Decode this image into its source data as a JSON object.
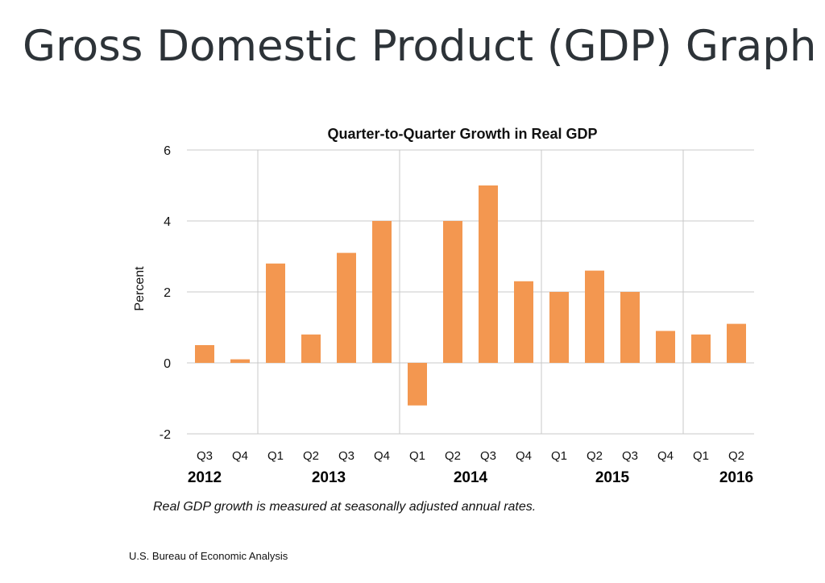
{
  "slide": {
    "title": "Gross Domestic Product (GDP) Graph",
    "source": "U.S. Bureau of Economic Analysis"
  },
  "chart_data": {
    "type": "bar",
    "title": "Quarter-to-Quarter Growth in Real GDP",
    "ylabel": "Percent",
    "xlabel": "",
    "ylim": [
      -2,
      6
    ],
    "yticks": [
      -2,
      0,
      2,
      4,
      6
    ],
    "grid": true,
    "categories": [
      "Q3",
      "Q4",
      "Q1",
      "Q2",
      "Q3",
      "Q4",
      "Q1",
      "Q2",
      "Q3",
      "Q4",
      "Q1",
      "Q2",
      "Q3",
      "Q4",
      "Q1",
      "Q2"
    ],
    "years": [
      {
        "label": "2012",
        "start": 0,
        "end": 1
      },
      {
        "label": "2013",
        "start": 2,
        "end": 5
      },
      {
        "label": "2014",
        "start": 6,
        "end": 9
      },
      {
        "label": "2015",
        "start": 10,
        "end": 13
      },
      {
        "label": "2016",
        "start": 14,
        "end": 15
      }
    ],
    "values": [
      0.5,
      0.1,
      2.8,
      0.8,
      3.1,
      4.0,
      -1.2,
      4.0,
      5.0,
      2.3,
      2.0,
      2.6,
      2.0,
      0.9,
      0.8,
      1.1
    ],
    "bar_color": "#f39750",
    "grid_color": "#c8c8c8",
    "note": "Real GDP growth is measured at seasonally adjusted annual rates."
  }
}
